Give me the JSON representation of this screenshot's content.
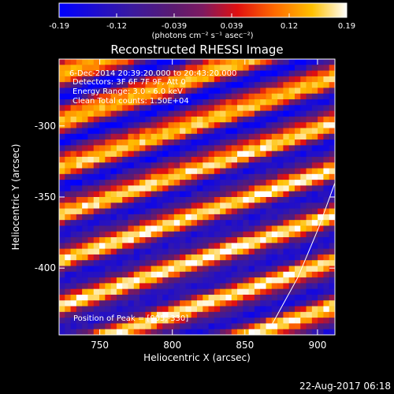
{
  "chart_data": {
    "type": "heatmap",
    "title": "Reconstructed RHESSI Image",
    "xlabel": "Heliocentric X (arcsec)",
    "ylabel": "Heliocentric Y (arcsec)",
    "xlim": [
      722,
      912
    ],
    "ylim": [
      -447,
      -253
    ],
    "x_ticks": [
      750,
      800,
      850,
      900
    ],
    "y_ticks": [
      -300,
      -350,
      -400
    ],
    "colorbar": {
      "ticks": [
        "-0.19",
        "-0.12",
        "-0.039",
        "0.039",
        "0.12",
        "0.19"
      ],
      "range": [
        -0.19,
        0.19
      ],
      "unit_label": "(photons cm⁻² s⁻¹ asec⁻²)"
    },
    "annotations": [
      " 6-Dec-2014 20:39:20.000 to 20:43:20.000",
      "Detectors: 3F 6F 7F 9F, Att 0",
      "Energy Range: 3.0 - 6.0 keV",
      "Clean    Total counts: 1.50E+04"
    ],
    "peak_label": "Position of Peak = [905,-330]",
    "colors": {
      "background": "#000000",
      "limb_line": "#ffffff"
    }
  },
  "footer": {
    "timestamp": "22-Aug-2017 06:18"
  }
}
